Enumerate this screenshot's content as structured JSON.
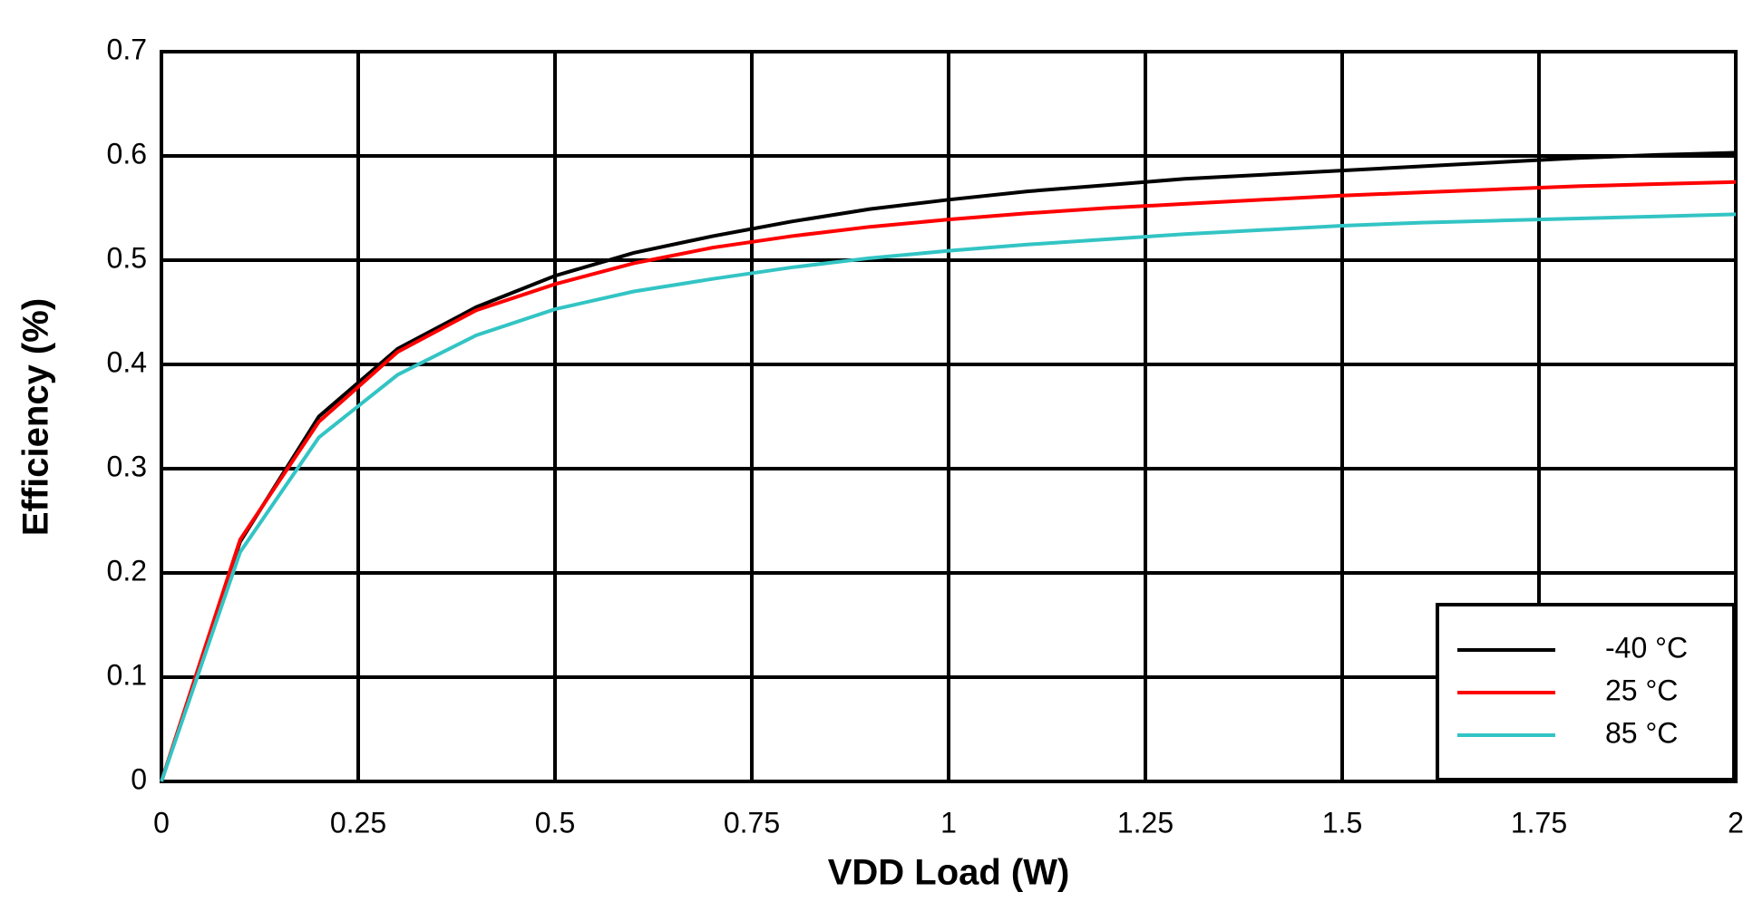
{
  "chart_data": {
    "type": "line",
    "x_label": "VDD Load (W)",
    "y_label": "Efficiency (%)",
    "x": [
      0,
      0.1,
      0.2,
      0.3,
      0.4,
      0.5,
      0.6,
      0.7,
      0.8,
      0.9,
      1,
      1.1,
      1.2,
      1.3,
      1.4,
      1.5,
      1.6,
      1.7,
      1.8,
      1.9,
      2
    ],
    "series": [
      {
        "name": "-40 °C",
        "color": "#000000",
        "values": [
          0,
          0.23,
          0.35,
          0.415,
          0.455,
          0.485,
          0.507,
          0.523,
          0.537,
          0.549,
          0.558,
          0.566,
          0.572,
          0.578,
          0.582,
          0.586,
          0.59,
          0.594,
          0.598,
          0.601,
          0.603
        ]
      },
      {
        "name": "25 °C",
        "color": "#ff0000",
        "values": [
          0,
          0.232,
          0.345,
          0.412,
          0.452,
          0.477,
          0.497,
          0.512,
          0.523,
          0.532,
          0.539,
          0.545,
          0.55,
          0.554,
          0.558,
          0.562,
          0.565,
          0.568,
          0.571,
          0.573,
          0.575
        ]
      },
      {
        "name": "85 °C",
        "color": "#33c4c4",
        "values": [
          0,
          0.22,
          0.33,
          0.39,
          0.428,
          0.453,
          0.47,
          0.482,
          0.493,
          0.502,
          0.509,
          0.515,
          0.52,
          0.525,
          0.529,
          0.533,
          0.536,
          0.538,
          0.54,
          0.542,
          0.544
        ]
      }
    ],
    "xlim": [
      0,
      2
    ],
    "xticks": [
      0,
      0.25,
      0.5,
      0.75,
      1,
      1.25,
      1.5,
      1.75,
      2
    ],
    "ylim": [
      0,
      0.7
    ],
    "yticks": [
      0,
      0.1,
      0.2,
      0.3,
      0.4,
      0.5,
      0.6,
      0.7
    ],
    "grid": true,
    "legend": "lower right"
  }
}
